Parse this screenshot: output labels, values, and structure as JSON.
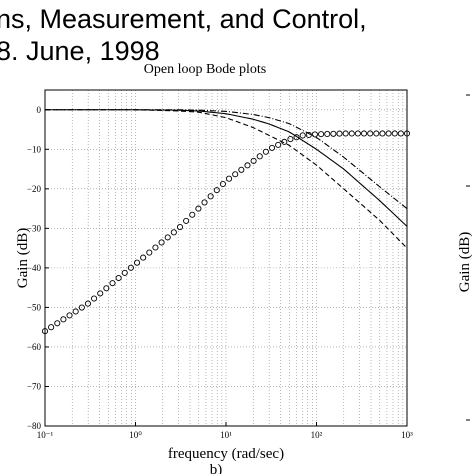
{
  "page": {
    "header_line1": "ns, Measurement, and Control,",
    "header_line2": "8. June, 1998",
    "panel_label": "b)",
    "right_panel_ylabel": "Gain (dB)"
  },
  "chart_data": {
    "type": "line",
    "title": "Open loop Bode plots",
    "xlabel": "frequency (rad/sec)",
    "ylabel": "Gain (dB)",
    "xscale": "log",
    "xlim": [
      0.1,
      1000
    ],
    "ylim": [
      -80,
      5
    ],
    "grid": true,
    "x_tick_labels": [
      "10⁻¹",
      "10⁰",
      "10¹",
      "10²",
      "10³"
    ],
    "y_ticks": [
      0,
      -10,
      -20,
      -30,
      -40,
      -50,
      -60,
      -70,
      -80
    ],
    "series": [
      {
        "style": "solid",
        "color": "#000000",
        "x": [
          0.1,
          1,
          3,
          5,
          10,
          20,
          30,
          50,
          100,
          200,
          500,
          1000
        ],
        "y": [
          0,
          0,
          -0.1,
          -0.3,
          -1,
          -2.4,
          -3.6,
          -5.6,
          -10,
          -15,
          -23,
          -29.5
        ]
      },
      {
        "style": "dashed",
        "color": "#000000",
        "x": [
          0.1,
          1,
          3,
          5,
          10,
          20,
          30,
          50,
          100,
          200,
          500,
          1000
        ],
        "y": [
          0,
          0,
          -0.3,
          -0.6,
          -2,
          -4.5,
          -6.5,
          -9,
          -14,
          -20,
          -28,
          -35
        ]
      },
      {
        "style": "dashdot",
        "color": "#000000",
        "x": [
          0.1,
          1,
          3,
          5,
          10,
          20,
          30,
          50,
          100,
          200,
          500,
          1000
        ],
        "y": [
          0,
          0,
          0,
          -0.1,
          -0.4,
          -1.2,
          -2,
          -3.5,
          -7,
          -12,
          -19.5,
          -25
        ]
      },
      {
        "style": "circles",
        "color": "#000000",
        "x": [
          0.1,
          0.3,
          1,
          3,
          10,
          20,
          30,
          50,
          70,
          100,
          200,
          500,
          1000
        ],
        "y": [
          -56,
          -49,
          -39,
          -30,
          -18,
          -13,
          -10,
          -7.5,
          -6.5,
          -6.2,
          -6,
          -6,
          -6
        ]
      }
    ]
  }
}
